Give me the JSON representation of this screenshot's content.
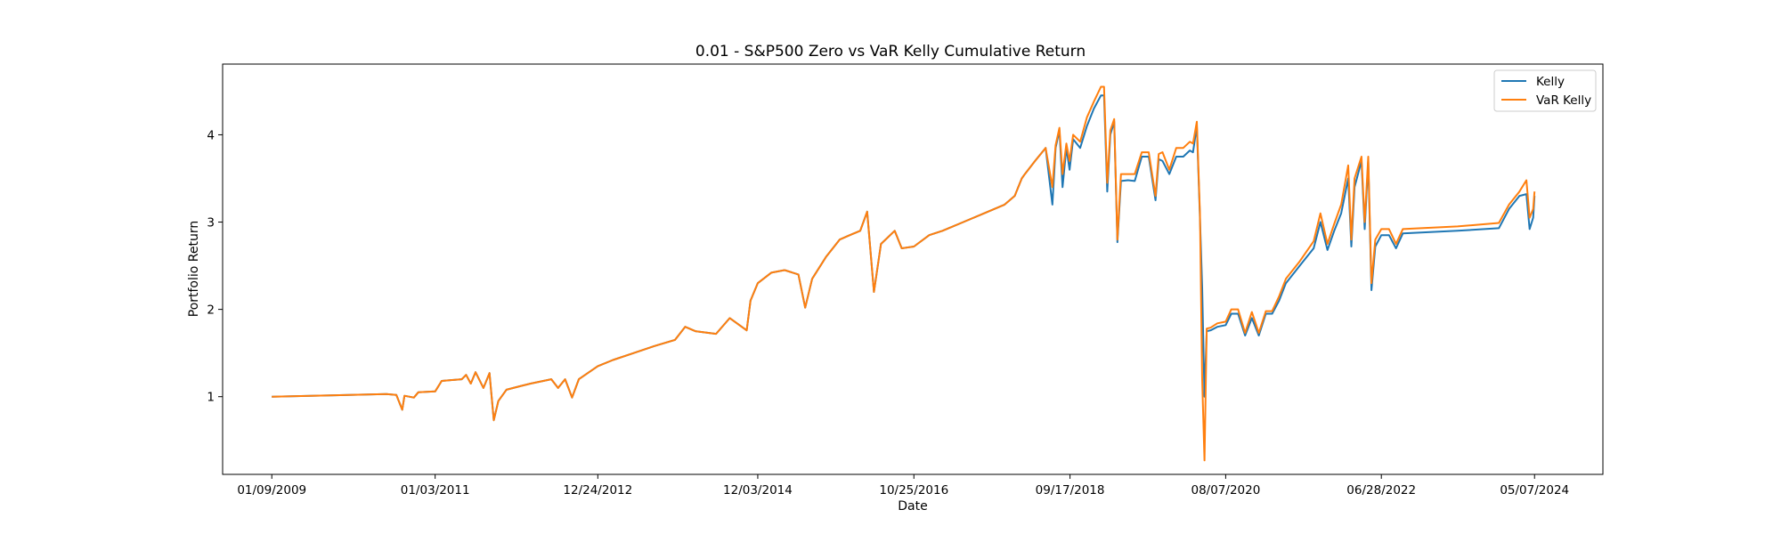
{
  "chart_data": {
    "type": "line",
    "title": "0.01 - S&P500 Zero vs VaR Kelly Cumulative Return",
    "xlabel": "Date",
    "ylabel": "Portfolio Return",
    "x_ticks": [
      "01/09/2009",
      "01/03/2011",
      "12/24/2012",
      "12/03/2014",
      "10/25/2016",
      "09/17/2018",
      "08/07/2020",
      "06/28/2022",
      "05/07/2024"
    ],
    "y_ticks": [
      1,
      2,
      3,
      4
    ],
    "xlim": [
      "2008-06-05",
      "2025-03-06"
    ],
    "ylim": [
      0.11,
      4.81
    ],
    "grid": false,
    "legend_position": "top-right",
    "series": [
      {
        "name": "Kelly",
        "color": "#1f77b4",
        "points": [
          [
            "2009-01-09",
            1.0
          ],
          [
            "2010-06-01",
            1.03
          ],
          [
            "2010-07-15",
            1.02
          ],
          [
            "2010-08-10",
            0.85
          ],
          [
            "2010-08-20",
            1.01
          ],
          [
            "2010-10-01",
            0.99
          ],
          [
            "2010-10-20",
            1.05
          ],
          [
            "2011-01-03",
            1.06
          ],
          [
            "2011-02-01",
            1.18
          ],
          [
            "2011-05-01",
            1.2
          ],
          [
            "2011-05-20",
            1.25
          ],
          [
            "2011-06-10",
            1.15
          ],
          [
            "2011-07-01",
            1.28
          ],
          [
            "2011-08-05",
            1.1
          ],
          [
            "2011-09-01",
            1.27
          ],
          [
            "2011-09-20",
            0.73
          ],
          [
            "2011-10-10",
            0.95
          ],
          [
            "2011-11-15",
            1.08
          ],
          [
            "2012-01-15",
            1.12
          ],
          [
            "2012-03-01",
            1.15
          ],
          [
            "2012-06-01",
            1.2
          ],
          [
            "2012-07-01",
            1.1
          ],
          [
            "2012-08-01",
            1.2
          ],
          [
            "2012-09-01",
            0.99
          ],
          [
            "2012-10-01",
            1.2
          ],
          [
            "2012-12-24",
            1.35
          ],
          [
            "2013-03-01",
            1.42
          ],
          [
            "2013-06-01",
            1.5
          ],
          [
            "2013-09-01",
            1.58
          ],
          [
            "2013-12-01",
            1.65
          ],
          [
            "2014-01-15",
            1.8
          ],
          [
            "2014-03-01",
            1.75
          ],
          [
            "2014-06-01",
            1.72
          ],
          [
            "2014-08-01",
            1.9
          ],
          [
            "2014-10-15",
            1.76
          ],
          [
            "2014-11-01",
            2.1
          ],
          [
            "2014-12-03",
            2.3
          ],
          [
            "2015-02-01",
            2.42
          ],
          [
            "2015-04-01",
            2.45
          ],
          [
            "2015-06-01",
            2.4
          ],
          [
            "2015-07-01",
            2.02
          ],
          [
            "2015-08-01",
            2.35
          ],
          [
            "2015-10-01",
            2.6
          ],
          [
            "2015-12-01",
            2.8
          ],
          [
            "2016-01-15",
            2.85
          ],
          [
            "2016-03-01",
            2.9
          ],
          [
            "2016-04-01",
            3.12
          ],
          [
            "2016-05-01",
            2.2
          ],
          [
            "2016-06-01",
            2.75
          ],
          [
            "2016-08-01",
            2.9
          ],
          [
            "2016-09-01",
            2.7
          ],
          [
            "2016-10-25",
            2.72
          ],
          [
            "2017-01-01",
            2.85
          ],
          [
            "2017-03-01",
            2.9
          ],
          [
            "2017-06-01",
            3.0
          ],
          [
            "2017-09-01",
            3.1
          ],
          [
            "2017-12-01",
            3.2
          ],
          [
            "2018-01-15",
            3.3
          ],
          [
            "2018-02-15",
            3.5
          ],
          [
            "2018-03-01",
            3.55
          ],
          [
            "2018-04-15",
            3.7
          ],
          [
            "2018-06-01",
            3.85
          ],
          [
            "2018-07-01",
            3.2
          ],
          [
            "2018-07-15",
            3.85
          ],
          [
            "2018-08-01",
            4.05
          ],
          [
            "2018-08-15",
            3.4
          ],
          [
            "2018-09-01",
            3.85
          ],
          [
            "2018-09-15",
            3.6
          ],
          [
            "2018-10-01",
            3.95
          ],
          [
            "2018-11-01",
            3.85
          ],
          [
            "2018-12-01",
            4.1
          ],
          [
            "2019-01-01",
            4.3
          ],
          [
            "2019-02-01",
            4.45
          ],
          [
            "2019-02-15",
            4.45
          ],
          [
            "2019-03-01",
            3.35
          ],
          [
            "2019-03-15",
            4.0
          ],
          [
            "2019-04-01",
            4.15
          ],
          [
            "2019-04-15",
            2.77
          ],
          [
            "2019-05-01",
            3.47
          ],
          [
            "2019-06-01",
            3.48
          ],
          [
            "2019-07-01",
            3.47
          ],
          [
            "2019-08-01",
            3.75
          ],
          [
            "2019-09-01",
            3.75
          ],
          [
            "2019-10-01",
            3.25
          ],
          [
            "2019-10-15",
            3.72
          ],
          [
            "2019-11-01",
            3.7
          ],
          [
            "2019-12-01",
            3.55
          ],
          [
            "2020-01-01",
            3.75
          ],
          [
            "2020-02-01",
            3.75
          ],
          [
            "2020-03-01",
            3.82
          ],
          [
            "2020-03-15",
            3.8
          ],
          [
            "2020-04-01",
            4.1
          ],
          [
            "2020-04-15",
            3.05
          ],
          [
            "2020-04-25",
            2.25
          ],
          [
            "2020-05-05",
            1.0
          ],
          [
            "2020-05-15",
            1.75
          ],
          [
            "2020-06-01",
            1.76
          ],
          [
            "2020-07-01",
            1.8
          ],
          [
            "2020-08-07",
            1.82
          ],
          [
            "2020-09-01",
            1.95
          ],
          [
            "2020-10-01",
            1.95
          ],
          [
            "2020-11-01",
            1.7
          ],
          [
            "2020-12-01",
            1.9
          ],
          [
            "2021-01-01",
            1.7
          ],
          [
            "2021-02-01",
            1.95
          ],
          [
            "2021-03-01",
            1.95
          ],
          [
            "2021-04-01",
            2.1
          ],
          [
            "2021-05-01",
            2.3
          ],
          [
            "2021-07-01",
            2.5
          ],
          [
            "2021-09-01",
            2.7
          ],
          [
            "2021-10-01",
            3.0
          ],
          [
            "2021-11-01",
            2.68
          ],
          [
            "2021-12-01",
            2.9
          ],
          [
            "2022-01-01",
            3.1
          ],
          [
            "2022-02-01",
            3.5
          ],
          [
            "2022-02-15",
            2.72
          ],
          [
            "2022-03-01",
            3.4
          ],
          [
            "2022-04-01",
            3.7
          ],
          [
            "2022-04-15",
            2.92
          ],
          [
            "2022-05-01",
            3.7
          ],
          [
            "2022-05-15",
            2.22
          ],
          [
            "2022-06-01",
            2.72
          ],
          [
            "2022-06-28",
            2.85
          ],
          [
            "2022-08-01",
            2.85
          ],
          [
            "2022-09-01",
            2.7
          ],
          [
            "2022-10-01",
            2.87
          ],
          [
            "2023-06-01",
            2.9
          ],
          [
            "2023-12-01",
            2.93
          ],
          [
            "2024-01-15",
            3.15
          ],
          [
            "2024-03-01",
            3.3
          ],
          [
            "2024-04-01",
            3.32
          ],
          [
            "2024-04-15",
            2.92
          ],
          [
            "2024-05-01",
            3.05
          ],
          [
            "2024-05-07",
            3.3
          ]
        ]
      },
      {
        "name": "VaR Kelly",
        "color": "#ff7f0e",
        "points": [
          [
            "2009-01-09",
            1.0
          ],
          [
            "2010-06-01",
            1.03
          ],
          [
            "2010-07-15",
            1.02
          ],
          [
            "2010-08-10",
            0.85
          ],
          [
            "2010-08-20",
            1.01
          ],
          [
            "2010-10-01",
            0.99
          ],
          [
            "2010-10-20",
            1.05
          ],
          [
            "2011-01-03",
            1.06
          ],
          [
            "2011-02-01",
            1.18
          ],
          [
            "2011-05-01",
            1.2
          ],
          [
            "2011-05-20",
            1.25
          ],
          [
            "2011-06-10",
            1.15
          ],
          [
            "2011-07-01",
            1.28
          ],
          [
            "2011-08-05",
            1.1
          ],
          [
            "2011-09-01",
            1.27
          ],
          [
            "2011-09-20",
            0.73
          ],
          [
            "2011-10-10",
            0.95
          ],
          [
            "2011-11-15",
            1.08
          ],
          [
            "2012-01-15",
            1.12
          ],
          [
            "2012-03-01",
            1.15
          ],
          [
            "2012-06-01",
            1.2
          ],
          [
            "2012-07-01",
            1.1
          ],
          [
            "2012-08-01",
            1.2
          ],
          [
            "2012-09-01",
            0.99
          ],
          [
            "2012-10-01",
            1.2
          ],
          [
            "2012-12-24",
            1.35
          ],
          [
            "2013-03-01",
            1.42
          ],
          [
            "2013-06-01",
            1.5
          ],
          [
            "2013-09-01",
            1.58
          ],
          [
            "2013-12-01",
            1.65
          ],
          [
            "2014-01-15",
            1.8
          ],
          [
            "2014-03-01",
            1.75
          ],
          [
            "2014-06-01",
            1.72
          ],
          [
            "2014-08-01",
            1.9
          ],
          [
            "2014-10-15",
            1.76
          ],
          [
            "2014-11-01",
            2.1
          ],
          [
            "2014-12-03",
            2.3
          ],
          [
            "2015-02-01",
            2.42
          ],
          [
            "2015-04-01",
            2.45
          ],
          [
            "2015-06-01",
            2.4
          ],
          [
            "2015-07-01",
            2.02
          ],
          [
            "2015-08-01",
            2.35
          ],
          [
            "2015-10-01",
            2.6
          ],
          [
            "2015-12-01",
            2.8
          ],
          [
            "2016-01-15",
            2.85
          ],
          [
            "2016-03-01",
            2.9
          ],
          [
            "2016-04-01",
            3.12
          ],
          [
            "2016-05-01",
            2.2
          ],
          [
            "2016-06-01",
            2.75
          ],
          [
            "2016-08-01",
            2.9
          ],
          [
            "2016-09-01",
            2.7
          ],
          [
            "2016-10-25",
            2.72
          ],
          [
            "2017-01-01",
            2.85
          ],
          [
            "2017-03-01",
            2.9
          ],
          [
            "2017-06-01",
            3.0
          ],
          [
            "2017-09-01",
            3.1
          ],
          [
            "2017-12-01",
            3.2
          ],
          [
            "2018-01-15",
            3.3
          ],
          [
            "2018-02-15",
            3.5
          ],
          [
            "2018-03-01",
            3.55
          ],
          [
            "2018-04-15",
            3.7
          ],
          [
            "2018-06-01",
            3.85
          ],
          [
            "2018-07-01",
            3.4
          ],
          [
            "2018-07-15",
            3.88
          ],
          [
            "2018-08-01",
            4.08
          ],
          [
            "2018-08-15",
            3.55
          ],
          [
            "2018-09-01",
            3.9
          ],
          [
            "2018-09-15",
            3.7
          ],
          [
            "2018-10-01",
            4.0
          ],
          [
            "2018-11-01",
            3.92
          ],
          [
            "2018-12-01",
            4.2
          ],
          [
            "2019-01-01",
            4.38
          ],
          [
            "2019-02-01",
            4.55
          ],
          [
            "2019-02-15",
            4.55
          ],
          [
            "2019-03-01",
            3.45
          ],
          [
            "2019-03-15",
            4.05
          ],
          [
            "2019-04-01",
            4.18
          ],
          [
            "2019-04-15",
            2.8
          ],
          [
            "2019-05-01",
            3.55
          ],
          [
            "2019-06-01",
            3.55
          ],
          [
            "2019-07-01",
            3.55
          ],
          [
            "2019-08-01",
            3.8
          ],
          [
            "2019-09-01",
            3.8
          ],
          [
            "2019-10-01",
            3.3
          ],
          [
            "2019-10-15",
            3.78
          ],
          [
            "2019-11-01",
            3.8
          ],
          [
            "2019-12-01",
            3.6
          ],
          [
            "2020-01-01",
            3.85
          ],
          [
            "2020-02-01",
            3.85
          ],
          [
            "2020-03-01",
            3.92
          ],
          [
            "2020-03-15",
            3.9
          ],
          [
            "2020-04-01",
            4.15
          ],
          [
            "2020-04-15",
            3.1
          ],
          [
            "2020-04-25",
            1.2
          ],
          [
            "2020-05-05",
            0.27
          ],
          [
            "2020-05-15",
            1.78
          ],
          [
            "2020-06-01",
            1.79
          ],
          [
            "2020-07-01",
            1.84
          ],
          [
            "2020-08-07",
            1.86
          ],
          [
            "2020-09-01",
            2.0
          ],
          [
            "2020-10-01",
            2.0
          ],
          [
            "2020-11-01",
            1.73
          ],
          [
            "2020-12-01",
            1.97
          ],
          [
            "2021-01-01",
            1.73
          ],
          [
            "2021-02-01",
            1.98
          ],
          [
            "2021-03-01",
            1.98
          ],
          [
            "2021-04-01",
            2.15
          ],
          [
            "2021-05-01",
            2.35
          ],
          [
            "2021-07-01",
            2.55
          ],
          [
            "2021-09-01",
            2.78
          ],
          [
            "2021-10-01",
            3.1
          ],
          [
            "2021-11-01",
            2.75
          ],
          [
            "2021-12-01",
            2.98
          ],
          [
            "2022-01-01",
            3.2
          ],
          [
            "2022-02-01",
            3.65
          ],
          [
            "2022-02-15",
            2.8
          ],
          [
            "2022-03-01",
            3.5
          ],
          [
            "2022-04-01",
            3.75
          ],
          [
            "2022-04-15",
            3.0
          ],
          [
            "2022-05-01",
            3.75
          ],
          [
            "2022-05-15",
            2.3
          ],
          [
            "2022-06-01",
            2.8
          ],
          [
            "2022-06-28",
            2.92
          ],
          [
            "2022-08-01",
            2.92
          ],
          [
            "2022-09-01",
            2.75
          ],
          [
            "2022-10-01",
            2.92
          ],
          [
            "2023-06-01",
            2.95
          ],
          [
            "2023-12-01",
            2.99
          ],
          [
            "2024-01-15",
            3.2
          ],
          [
            "2024-03-01",
            3.35
          ],
          [
            "2024-04-01",
            3.48
          ],
          [
            "2024-04-15",
            3.05
          ],
          [
            "2024-05-01",
            3.15
          ],
          [
            "2024-05-07",
            3.35
          ]
        ]
      }
    ]
  }
}
